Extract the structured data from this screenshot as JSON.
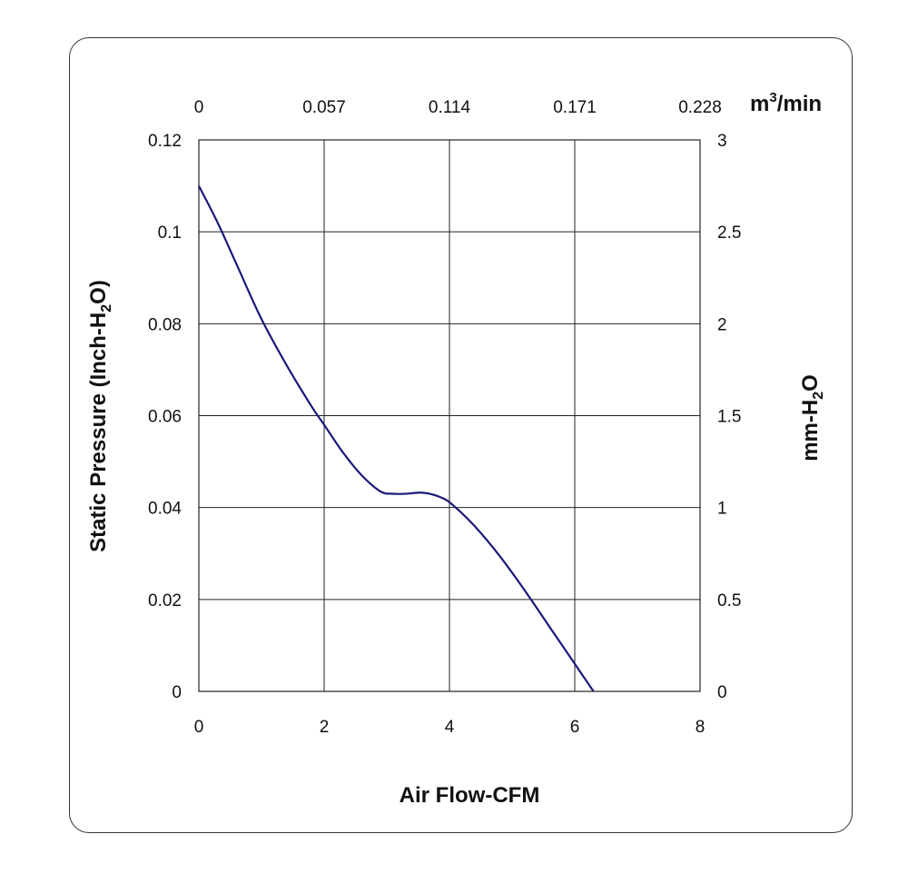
{
  "chart_data": {
    "type": "line",
    "title": "",
    "xlabel": "Air Flow-CFM",
    "ylabel_main": "Static Pressure (Inch-H",
    "ylabel_sub": "2",
    "ylabel_tail": "O)",
    "ylabel2_main": "mm-H",
    "ylabel2_sub": "2",
    "ylabel2_tail": "O",
    "x2label_main": "m",
    "x2label_sup": "3",
    "x2label_tail": "/min",
    "xlim": [
      0,
      8
    ],
    "ylim": [
      0,
      0.12
    ],
    "y2lim": [
      0,
      3
    ],
    "x_ticks": [
      "0",
      "2",
      "4",
      "6",
      "8"
    ],
    "y_ticks": [
      "0",
      "0.02",
      "0.04",
      "0.06",
      "0.08",
      "0.1",
      "0.12"
    ],
    "x2_ticks": [
      "0",
      "0.057",
      "0.114",
      "0.171",
      "0.228"
    ],
    "y2_ticks": [
      "0",
      "0.5",
      "1",
      "1.5",
      "2",
      "2.5",
      "3"
    ],
    "grid": true,
    "line_color": "#1a1a7a",
    "series": [
      {
        "x": [
          0,
          0.3,
          0.6,
          1.0,
          1.4,
          1.8,
          2.0,
          2.3,
          2.6,
          2.9,
          3.1,
          3.3,
          3.6,
          3.9,
          4.1,
          4.4,
          4.8,
          5.2,
          5.6,
          6.0,
          6.3
        ],
        "y": [
          0.11,
          0.102,
          0.093,
          0.081,
          0.071,
          0.062,
          0.058,
          0.052,
          0.047,
          0.0435,
          0.043,
          0.043,
          0.0432,
          0.042,
          0.04,
          0.036,
          0.0295,
          0.022,
          0.014,
          0.006,
          0.0
        ]
      }
    ]
  }
}
